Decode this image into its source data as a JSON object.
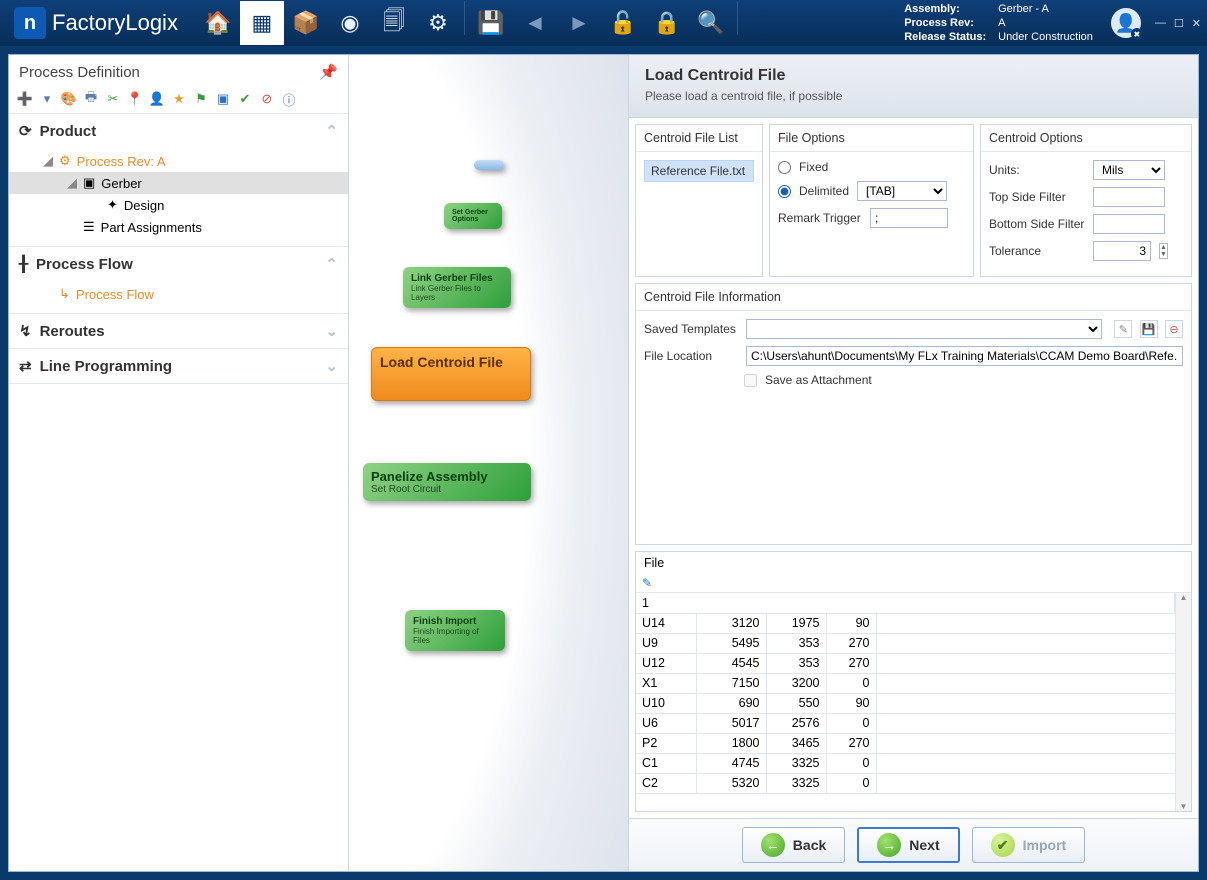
{
  "app": {
    "brand": "FactoryLogix"
  },
  "topbar": {
    "assembly_label": "Assembly:",
    "assembly_value": "Gerber - A",
    "process_rev_label": "Process Rev:",
    "process_rev_value": "A",
    "release_status_label": "Release Status:",
    "release_status_value": "Under Construction"
  },
  "sidebar": {
    "title": "Process Definition",
    "sections": {
      "product": {
        "label": "Product"
      },
      "process_flow": {
        "label": "Process Flow"
      },
      "reroutes": {
        "label": "Reroutes"
      },
      "line_programming": {
        "label": "Line Programming"
      }
    },
    "tree": {
      "process_rev": "Process Rev: A",
      "gerber": "Gerber",
      "design": "Design",
      "part_assignments": "Part Assignments",
      "process_flow_item": "Process Flow"
    }
  },
  "canvas": {
    "nodes": {
      "set_gerber": {
        "title": "Set Gerber Options"
      },
      "link_gerber": {
        "title": "Link Gerber Files",
        "sub": "Link Gerber Files to Layers"
      },
      "load_centroid": {
        "title": "Load Centroid File"
      },
      "panelize": {
        "title": "Panelize Assembly",
        "sub": "Set Root Circuit"
      },
      "finish": {
        "title": "Finish Import",
        "sub": "Finish Importing of Files"
      }
    }
  },
  "right": {
    "header": {
      "title": "Load Centroid File",
      "subtitle": "Please load a centroid file, if possible"
    },
    "file_list": {
      "title": "Centroid File List",
      "items": [
        "Reference File.txt"
      ]
    },
    "file_options": {
      "title": "File Options",
      "fixed": "Fixed",
      "delimited": "Delimited",
      "delimiter_value": "[TAB]",
      "remark_trigger_label": "Remark Trigger",
      "remark_trigger_value": ";"
    },
    "centroid_options": {
      "title": "Centroid Options",
      "units_label": "Units:",
      "units_value": "Mils",
      "top_label": "Top Side Filter",
      "bottom_label": "Bottom Side Filter",
      "tolerance_label": "Tolerance",
      "tolerance_value": "3"
    },
    "file_info": {
      "title": "Centroid File Information",
      "saved_templates_label": "Saved Templates",
      "file_location_label": "File Location",
      "file_location_value": "C:\\Users\\ahunt\\Documents\\My FLx Training Materials\\CCAM Demo Board\\Refe...",
      "save_attachment_label": "Save as Attachment"
    },
    "grid": {
      "title": "File",
      "first_row": "1",
      "rows": [
        [
          "U14",
          "3120",
          "1975",
          "90"
        ],
        [
          "U9",
          "5495",
          "353",
          "270"
        ],
        [
          "U12",
          "4545",
          "353",
          "270"
        ],
        [
          "X1",
          "7150",
          "3200",
          "0"
        ],
        [
          "U10",
          "690",
          "550",
          "90"
        ],
        [
          "U6",
          "5017",
          "2576",
          "0"
        ],
        [
          "P2",
          "1800",
          "3465",
          "270"
        ],
        [
          "C1",
          "4745",
          "3325",
          "0"
        ],
        [
          "C2",
          "5320",
          "3325",
          "0"
        ]
      ]
    },
    "wizard": {
      "back": "Back",
      "next": "Next",
      "import": "Import"
    }
  }
}
